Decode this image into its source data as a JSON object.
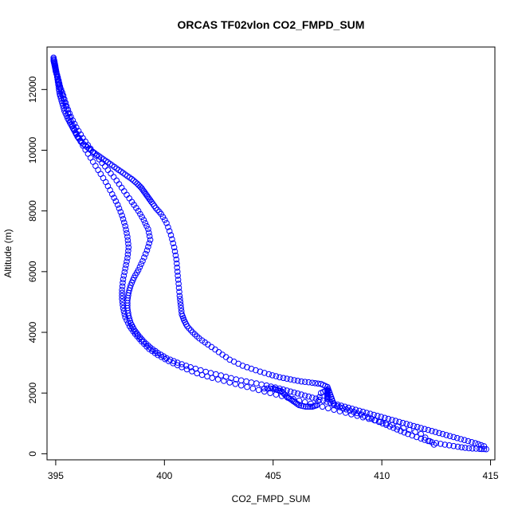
{
  "chart_data": {
    "type": "scatter",
    "title": "ORCAS TF02vlon CO2_FMPD_SUM",
    "xlabel": "CO2_FMPD_SUM",
    "ylabel": "Altitude (m)",
    "xlim": [
      394.6,
      415.2
    ],
    "ylim": [
      -200,
      13400
    ],
    "xticks": [
      395,
      400,
      405,
      410,
      415
    ],
    "yticks": [
      0,
      2000,
      4000,
      6000,
      8000,
      10000,
      12000
    ],
    "marker": "open-circle",
    "color": "#0000ff",
    "grid": false,
    "legend": "none",
    "series": [
      {
        "x": [
          394.9,
          394.95,
          395.0,
          395.05,
          395.1,
          395.15,
          395.2,
          395.3,
          395.4,
          395.55,
          395.7,
          395.85,
          396.0,
          396.2,
          396.45,
          396.7,
          397.0,
          397.3,
          397.6,
          397.9,
          398.2,
          398.5,
          398.75,
          398.95,
          399.1,
          399.25,
          399.4,
          399.6,
          399.85,
          400.1,
          400.3,
          400.45,
          400.55,
          400.6,
          400.65,
          400.7,
          400.75,
          400.8,
          400.9,
          401.05,
          401.3,
          401.6,
          402.0,
          402.5,
          403.0,
          403.6,
          404.2,
          404.8,
          405.3,
          405.8,
          406.3,
          406.8,
          407.2,
          407.5,
          407.6,
          407.7,
          407.8,
          408.2,
          408.7,
          409.2,
          409.7,
          410.2,
          410.7,
          411.2,
          411.8,
          412.3,
          412.9,
          413.5,
          414.0,
          414.5,
          414.8
        ],
        "y": [
          13050,
          12900,
          12700,
          12500,
          12250,
          12000,
          11800,
          11550,
          11300,
          11050,
          10850,
          10650,
          10450,
          10250,
          10100,
          9950,
          9800,
          9650,
          9500,
          9350,
          9200,
          9050,
          8900,
          8750,
          8600,
          8450,
          8300,
          8100,
          7900,
          7600,
          7200,
          6800,
          6400,
          6000,
          5600,
          5200,
          4900,
          4600,
          4400,
          4200,
          4000,
          3800,
          3600,
          3350,
          3100,
          2900,
          2750,
          2620,
          2520,
          2450,
          2380,
          2340,
          2300,
          2200,
          2000,
          1800,
          1600,
          1500,
          1380,
          1250,
          1100,
          950,
          800,
          650,
          500,
          380,
          300,
          230,
          180,
          160,
          150
        ]
      },
      {
        "x": [
          394.9,
          394.95,
          395.0,
          395.1,
          395.2,
          395.35,
          395.5,
          395.7,
          395.95,
          396.25,
          396.6,
          397.0,
          397.4,
          397.8,
          398.15,
          398.5,
          398.8,
          399.05,
          399.25,
          399.35,
          399.2,
          399.0,
          398.8,
          398.6,
          398.45,
          398.35,
          398.3,
          398.3,
          398.35,
          398.45,
          398.6,
          398.8,
          399.05,
          399.35,
          399.7,
          400.1,
          400.6,
          401.2,
          401.9,
          402.6,
          403.3,
          404.0,
          404.7,
          405.3,
          405.8,
          406.3,
          406.8,
          407.3,
          407.8,
          408.3,
          408.8,
          409.3,
          409.8,
          410.3,
          410.8,
          411.3,
          411.8,
          412.3,
          412.8,
          413.3,
          413.8,
          414.3,
          414.7
        ],
        "y": [
          13000,
          12850,
          12650,
          12400,
          12100,
          11800,
          11450,
          11100,
          10750,
          10400,
          10050,
          9700,
          9350,
          9000,
          8650,
          8300,
          8000,
          7700,
          7400,
          7050,
          6700,
          6350,
          6050,
          5800,
          5550,
          5300,
          5050,
          4800,
          4550,
          4300,
          4100,
          3900,
          3700,
          3500,
          3320,
          3150,
          3000,
          2850,
          2700,
          2580,
          2450,
          2350,
          2250,
          2150,
          2050,
          1950,
          1850,
          1750,
          1650,
          1550,
          1450,
          1350,
          1250,
          1150,
          1050,
          950,
          850,
          750,
          650,
          550,
          450,
          350,
          250
        ]
      },
      {
        "x": [
          394.9,
          394.95,
          395.0,
          395.1,
          395.2,
          395.35,
          395.5,
          395.7,
          395.95,
          396.25,
          396.6,
          396.95,
          397.3,
          397.6,
          397.85,
          398.05,
          398.2,
          398.3,
          398.35,
          398.3,
          398.2,
          398.1,
          398.05,
          398.05,
          398.1,
          398.2,
          398.4,
          398.65,
          398.95,
          399.3,
          399.7,
          400.2,
          400.8,
          401.5,
          402.2,
          403.0,
          403.8,
          404.6,
          405.4,
          406.2,
          407.0,
          407.8,
          408.6,
          409.4,
          410.2,
          411.0,
          411.8,
          412.4
        ],
        "y": [
          12950,
          12800,
          12600,
          12350,
          12050,
          11700,
          11350,
          10950,
          10550,
          10150,
          9750,
          9350,
          8950,
          8550,
          8200,
          7850,
          7500,
          7150,
          6800,
          6450,
          6100,
          5750,
          5400,
          5100,
          4800,
          4500,
          4200,
          3950,
          3700,
          3450,
          3250,
          3050,
          2850,
          2650,
          2500,
          2350,
          2200,
          2050,
          1900,
          1750,
          1600,
          1450,
          1300,
          1150,
          1000,
          850,
          650,
          300
        ]
      },
      {
        "x": [
          404.6,
          405.0,
          405.2,
          405.4,
          405.6,
          405.8,
          406.0,
          406.2,
          406.5,
          406.8,
          407.0,
          407.2,
          407.5,
          407.5,
          407.5,
          407.5
        ],
        "y": [
          2150,
          2150,
          2100,
          2050,
          1900,
          1800,
          1700,
          1600,
          1550,
          1550,
          1600,
          2000,
          2100,
          2000,
          1900,
          1800
        ]
      }
    ]
  }
}
